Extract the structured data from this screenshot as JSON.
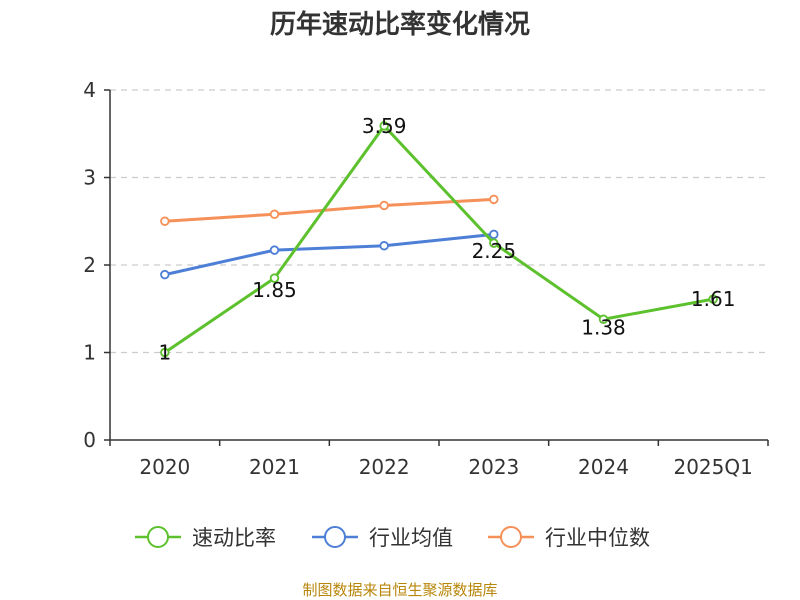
{
  "chart_data": {
    "type": "line",
    "title": "历年速动比率变化情况",
    "categories": [
      "2020",
      "2021",
      "2022",
      "2023",
      "2024",
      "2025Q1"
    ],
    "ylim": [
      0,
      4
    ],
    "yticks": [
      0,
      1,
      2,
      3,
      4
    ],
    "grid": true,
    "legend_position": "bottom",
    "series": [
      {
        "name": "速动比率",
        "color": "#5dc12e",
        "values": [
          1,
          1.85,
          3.59,
          2.25,
          1.38,
          1.61
        ],
        "labels": [
          "1",
          "1.85",
          "3.59",
          "2.25",
          "1.38",
          "1.61"
        ]
      },
      {
        "name": "行业均值",
        "color": "#4e7fd6",
        "values": [
          1.89,
          2.17,
          2.22,
          2.35,
          null,
          null
        ]
      },
      {
        "name": "行业中位数",
        "color": "#f59158",
        "values": [
          2.5,
          2.58,
          2.68,
          2.75,
          null,
          null
        ]
      }
    ],
    "source": "制图数据来自恒生聚源数据库"
  }
}
